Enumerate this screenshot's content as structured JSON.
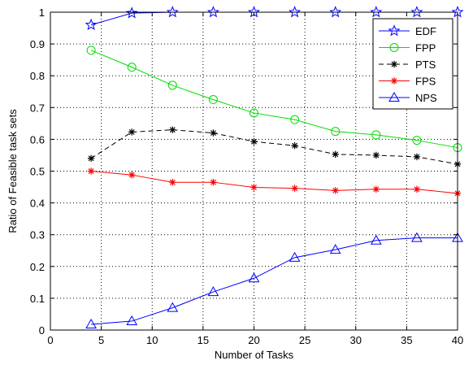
{
  "chart_data": {
    "type": "line",
    "title": "",
    "xlabel": "Number of Tasks",
    "ylabel": "Ratio of Feasible task sets",
    "xlim": [
      0,
      40
    ],
    "ylim": [
      0,
      1
    ],
    "xticks": [
      0,
      5,
      10,
      15,
      20,
      25,
      30,
      35,
      40
    ],
    "yticks": [
      0,
      0.1,
      0.2,
      0.3,
      0.4,
      0.5,
      0.6,
      0.7,
      0.8,
      0.9,
      1
    ],
    "xtick_labels": [
      "0",
      "5",
      "10",
      "15",
      "20",
      "25",
      "30",
      "35",
      "40"
    ],
    "ytick_labels": [
      "0",
      "0.1",
      "0.2",
      "0.3",
      "0.4",
      "0.5",
      "0.6",
      "0.7",
      "0.8",
      "0.9",
      "1"
    ],
    "grid": true,
    "legend_position": "top-right",
    "x": [
      4,
      8,
      12,
      16,
      20,
      24,
      28,
      32,
      36,
      40
    ],
    "series": [
      {
        "name": "EDF",
        "color": "#0000ff",
        "marker": "star",
        "dash": "solid",
        "values": [
          0.96,
          0.997,
          1.0,
          1.0,
          1.0,
          1.0,
          1.0,
          1.0,
          1.0,
          1.0
        ]
      },
      {
        "name": "FPP",
        "color": "#00dd00",
        "marker": "circle",
        "dash": "solid",
        "values": [
          0.88,
          0.827,
          0.77,
          0.725,
          0.683,
          0.662,
          0.625,
          0.614,
          0.597,
          0.574
        ]
      },
      {
        "name": "PTS",
        "color": "#000000",
        "marker": "asterisk",
        "dash": "dashed",
        "values": [
          0.54,
          0.623,
          0.63,
          0.62,
          0.593,
          0.58,
          0.553,
          0.55,
          0.545,
          0.522
        ]
      },
      {
        "name": "FPS",
        "color": "#ff0000",
        "marker": "asterisk",
        "dash": "solid",
        "values": [
          0.5,
          0.488,
          0.465,
          0.465,
          0.449,
          0.446,
          0.439,
          0.443,
          0.443,
          0.43
        ]
      },
      {
        "name": "NPS",
        "color": "#0000ff",
        "marker": "triangle",
        "dash": "solid",
        "values": [
          0.018,
          0.028,
          0.07,
          0.12,
          0.163,
          0.228,
          0.253,
          0.282,
          0.29,
          0.29
        ]
      }
    ]
  }
}
